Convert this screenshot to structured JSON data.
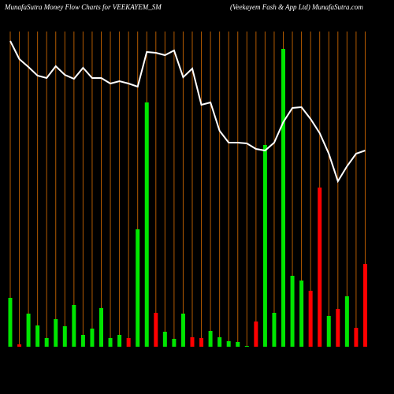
{
  "chart_data": {
    "type": "bar",
    "title": "MunafaSutra  Money Flow  Charts for VEEKAYEM_SM",
    "subtitle": "(Veekayem Fash & App Ltd) MunafaSutra.com",
    "categories": [
      null,
      null,
      null,
      null,
      null,
      null,
      null,
      null,
      null,
      null,
      null,
      null,
      null,
      null,
      null,
      null,
      null,
      null,
      null,
      null,
      null,
      null,
      null,
      null,
      null,
      null,
      null,
      null,
      null,
      null,
      null,
      null,
      null,
      null,
      null,
      null,
      null,
      null,
      null,
      null
    ],
    "values": [
      62,
      3,
      42,
      27,
      11,
      35,
      26,
      53,
      15,
      23,
      49,
      11,
      15,
      11,
      149,
      310,
      43,
      19,
      10,
      42,
      12,
      11,
      20,
      12,
      7,
      6,
      1,
      32,
      256,
      43,
      378,
      90,
      84,
      71,
      202,
      39,
      48,
      64,
      24,
      105
    ],
    "colors": [
      "#00e600",
      "#ff0000",
      "#00e600",
      "#00e600",
      "#00e600",
      "#00e600",
      "#00e600",
      "#00e600",
      "#00e600",
      "#00e600",
      "#00e600",
      "#00e600",
      "#00e600",
      "#ff0000",
      "#00e600",
      "#00e600",
      "#ff0000",
      "#00e600",
      "#00e600",
      "#00e600",
      "#ff0000",
      "#ff0000",
      "#00e600",
      "#00e600",
      "#00e600",
      "#00e600",
      "#00e600",
      "#ff0000",
      "#00e600",
      "#00e600",
      "#00e600",
      "#00e600",
      "#00e600",
      "#ff0000",
      "#ff0000",
      "#00e600",
      "#ff0000",
      "#00e600",
      "#ff0000",
      "#ff0000"
    ],
    "line": {
      "color": "#ffffff",
      "values": [
        388,
        365,
        355,
        344,
        341,
        356,
        345,
        340,
        354,
        341,
        341,
        334,
        337,
        334,
        330,
        374,
        373,
        370,
        376,
        342,
        353,
        307,
        310,
        274,
        259,
        259,
        258,
        251,
        249,
        259,
        285,
        303,
        304,
        289,
        271,
        245,
        210,
        229,
        245,
        249
      ]
    },
    "ylim": [
      0,
      400
    ],
    "guide_color": "#b35a00"
  }
}
